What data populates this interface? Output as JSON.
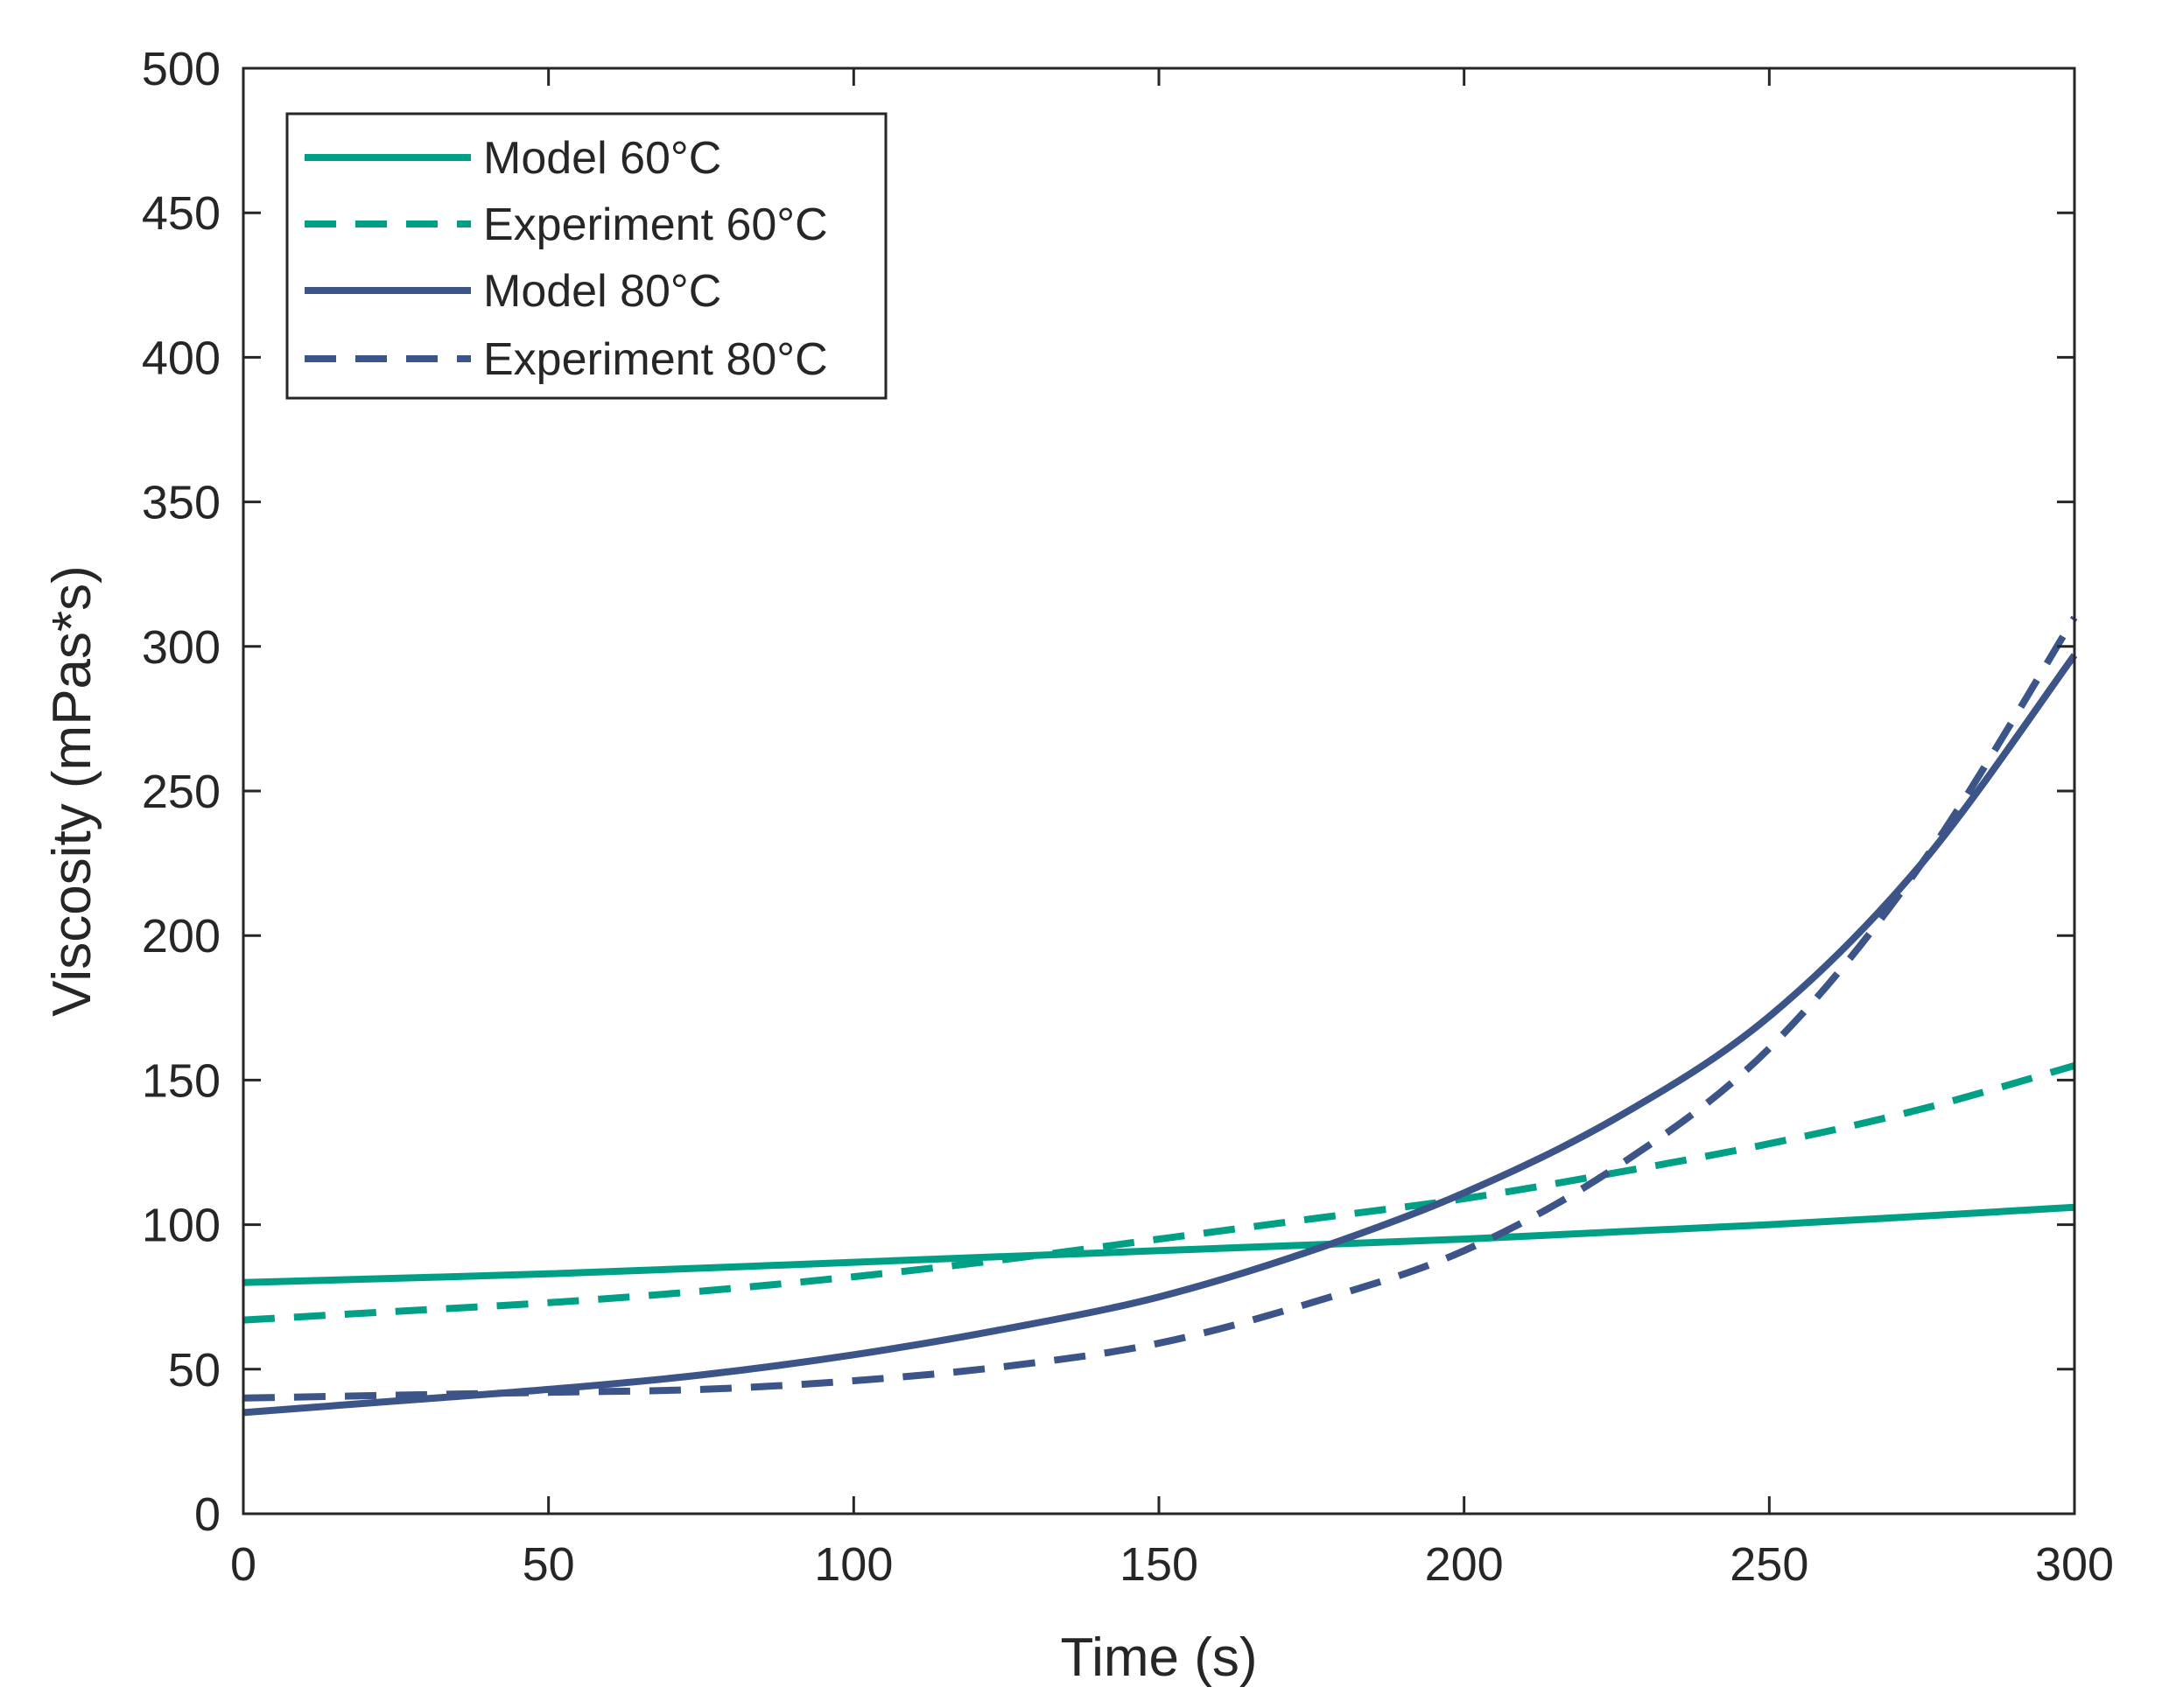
{
  "chart_data": {
    "type": "line",
    "title": "",
    "xlabel": "Time (s)",
    "ylabel": "Viscosity (mPas*s)",
    "xlim": [
      0,
      300
    ],
    "ylim": [
      0,
      500
    ],
    "xticks": [
      0,
      50,
      100,
      150,
      200,
      250,
      300
    ],
    "yticks": [
      0,
      50,
      100,
      150,
      200,
      250,
      300,
      350,
      400,
      450,
      500
    ],
    "grid": false,
    "legend_position": "top-left",
    "series": [
      {
        "name": "Model 60°C",
        "color": "#00a087",
        "style": "solid",
        "x": [
          0,
          50,
          100,
          150,
          200,
          250,
          300
        ],
        "y": [
          80,
          83,
          87,
          91,
          95,
          100,
          106
        ]
      },
      {
        "name": "Experiment 60°C",
        "color": "#00a087",
        "style": "dashed",
        "x": [
          0,
          25,
          50,
          75,
          100,
          125,
          150,
          175,
          200,
          225,
          250,
          275,
          300
        ],
        "y": [
          67,
          70,
          73,
          77,
          82,
          88,
          95,
          102,
          109,
          118,
          128,
          140,
          155
        ]
      },
      {
        "name": "Model 80°C",
        "color": "#3c5488",
        "style": "solid",
        "x": [
          0,
          25,
          50,
          75,
          100,
          125,
          150,
          175,
          200,
          225,
          250,
          275,
          300
        ],
        "y": [
          35,
          39,
          43,
          48,
          55,
          64,
          75,
          91,
          111,
          137,
          172,
          225,
          297
        ]
      },
      {
        "name": "Experiment 80°C",
        "color": "#3c5488",
        "style": "dashed",
        "x": [
          0,
          25,
          50,
          75,
          100,
          125,
          150,
          175,
          200,
          225,
          250,
          275,
          300
        ],
        "y": [
          40,
          41,
          42,
          43,
          46,
          51,
          59,
          73,
          91,
          120,
          161,
          225,
          310
        ]
      }
    ]
  }
}
